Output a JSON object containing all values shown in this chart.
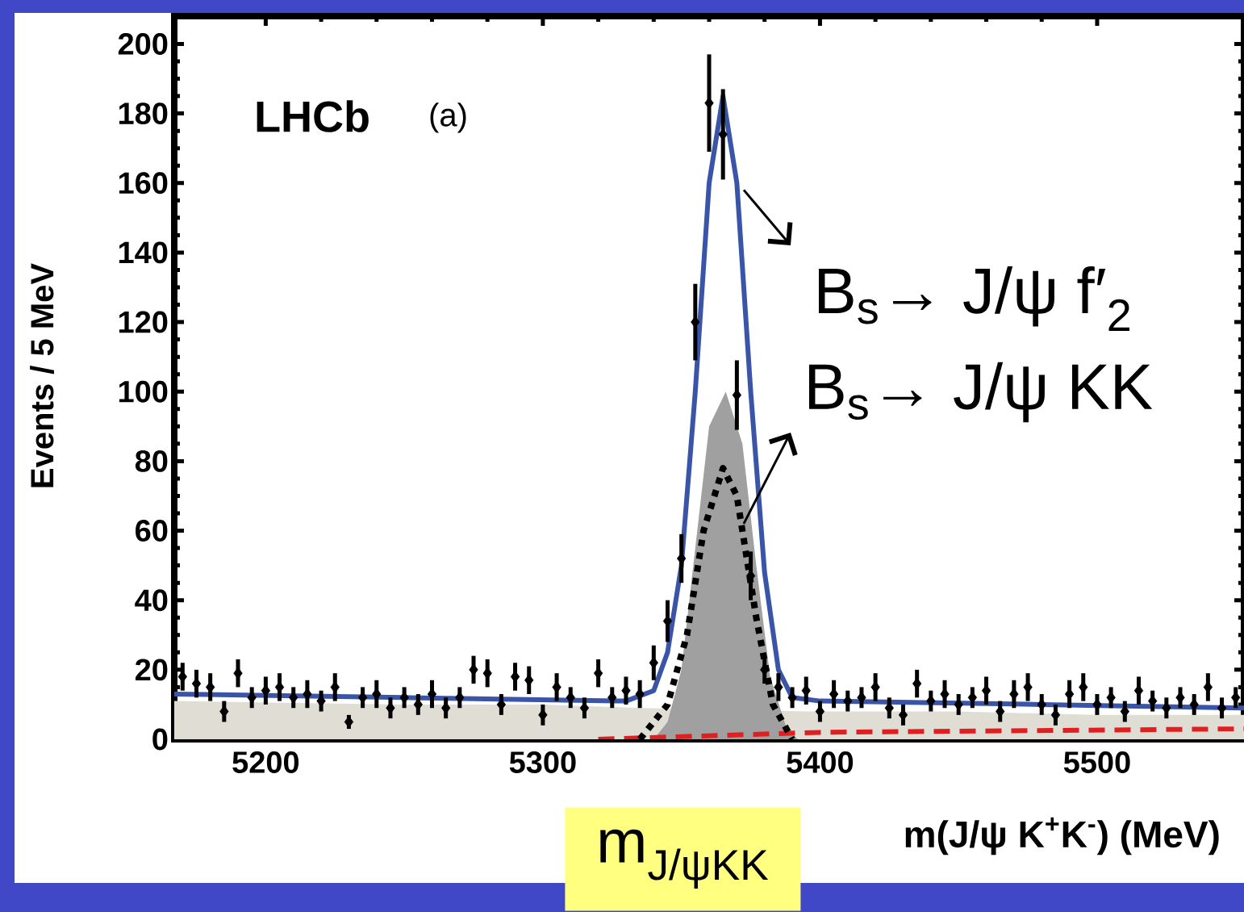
{
  "chart_data": {
    "type": "scatter",
    "xlabel": "m(J/ψ K$^{+}$K$^{-}$)   (MeV)",
    "ylabel": "Events / 5 MeV",
    "annotations": [
      "LHCb",
      "(a)",
      {
        "text": "B$_{s}$→ J/ψ f′$_{2}$",
        "x": 5369,
        "y": 158
      },
      {
        "text": "B$_{s}$→ J/ψ KK",
        "x": 5369,
        "y": 62
      },
      "m$_{J/ψKK}$"
    ],
    "xlim": [
      5167,
      5553
    ],
    "ylim": [
      0,
      208
    ],
    "xticks": [
      5200,
      5300,
      5400,
      5500
    ],
    "yticks": [
      0,
      20,
      40,
      60,
      80,
      100,
      120,
      140,
      160,
      180,
      200
    ],
    "series": [
      {
        "type": "area",
        "color": "#e0ddd5",
        "x": [
          5167,
          5250,
          5300,
          5335,
          5395,
          5450,
          5500,
          5553
        ],
        "values": [
          11,
          10,
          10,
          9,
          8,
          8,
          7,
          7
        ]
      },
      {
        "type": "area",
        "color": "#a0a0a0",
        "x": [
          5340,
          5345,
          5350,
          5355,
          5360,
          5366,
          5372,
          5377,
          5382,
          5388,
          5392
        ],
        "values": [
          0,
          5,
          20,
          55,
          90,
          100,
          85,
          50,
          18,
          3,
          0
        ]
      },
      {
        "type": "line",
        "color": "#e02020",
        "line_style": "dashed",
        "x": [
          5320,
          5400,
          5553
        ],
        "values": [
          0,
          2,
          3
        ]
      },
      {
        "type": "line",
        "color": "#000000",
        "line_style": "dotted",
        "x": [
          5335,
          5345,
          5352,
          5358,
          5365,
          5370,
          5377,
          5383,
          5390
        ],
        "values": [
          0,
          10,
          30,
          60,
          78,
          70,
          35,
          10,
          0
        ]
      },
      {
        "type": "line",
        "color": "#3a55a8",
        "line_style": "solid",
        "x": [
          5167,
          5250,
          5330,
          5340,
          5345,
          5350,
          5355,
          5360,
          5365,
          5370,
          5375,
          5380,
          5385,
          5390,
          5400,
          5480,
          5553
        ],
        "values": [
          13,
          12,
          11,
          14,
          25,
          50,
          100,
          160,
          185,
          160,
          100,
          48,
          20,
          12,
          11,
          10,
          9
        ]
      },
      {
        "color": "#000000",
        "marker": "diamond",
        "x": [
          5170,
          5175,
          5180,
          5185,
          5190,
          5195,
          5200,
          5205,
          5210,
          5215,
          5220,
          5225,
          5230,
          5235,
          5240,
          5245,
          5250,
          5255,
          5260,
          5265,
          5270,
          5275,
          5280,
          5285,
          5290,
          5295,
          5300,
          5305,
          5310,
          5315,
          5320,
          5325,
          5330,
          5335,
          5340,
          5345,
          5350,
          5355,
          5360,
          5365,
          5370,
          5375,
          5380,
          5385,
          5390,
          5395,
          5400,
          5405,
          5410,
          5415,
          5420,
          5425,
          5430,
          5435,
          5440,
          5445,
          5450,
          5455,
          5460,
          5465,
          5470,
          5475,
          5480,
          5485,
          5490,
          5495,
          5500,
          5505,
          5510,
          5515,
          5520,
          5525,
          5530,
          5535,
          5540,
          5545,
          5550
        ],
        "values": [
          18,
          16,
          15,
          8,
          19,
          12,
          14,
          15,
          12,
          13,
          11,
          15,
          5,
          12,
          13,
          9,
          12,
          10,
          13,
          9,
          12,
          20,
          19,
          10,
          18,
          17,
          7,
          15,
          12,
          9,
          19,
          12,
          14,
          13,
          22,
          34,
          52,
          120,
          183,
          174,
          99,
          47,
          20,
          15,
          12,
          14,
          8,
          13,
          11,
          12,
          15,
          9,
          7,
          16,
          11,
          13,
          10,
          12,
          14,
          8,
          13,
          15,
          10,
          7,
          13,
          15,
          10,
          12,
          8,
          14,
          11,
          9,
          12,
          10,
          15,
          9,
          12
        ],
        "errors": [
          4,
          4,
          4,
          3,
          4,
          3,
          4,
          4,
          3,
          4,
          3,
          4,
          2,
          3,
          4,
          3,
          3,
          3,
          4,
          3,
          3,
          4,
          4,
          3,
          4,
          4,
          3,
          4,
          3,
          3,
          4,
          3,
          4,
          4,
          5,
          6,
          7,
          11,
          14,
          13,
          10,
          7,
          4,
          4,
          3,
          4,
          3,
          4,
          3,
          3,
          4,
          3,
          3,
          4,
          3,
          4,
          3,
          3,
          4,
          3,
          4,
          4,
          3,
          3,
          4,
          4,
          3,
          3,
          3,
          4,
          3,
          3,
          3,
          3,
          4,
          3,
          3
        ]
      }
    ]
  }
}
